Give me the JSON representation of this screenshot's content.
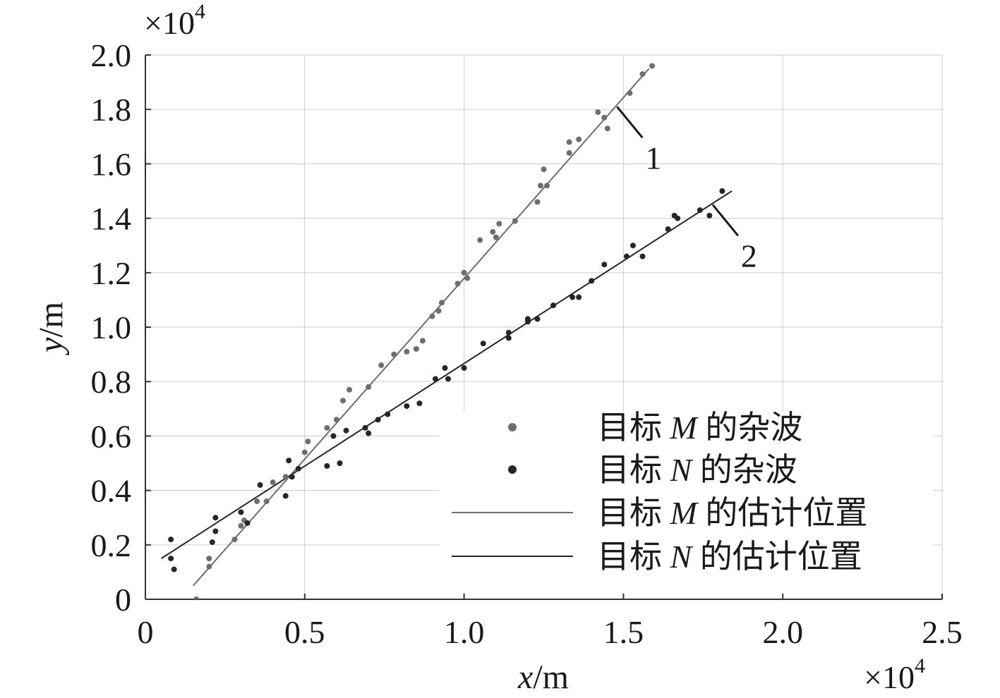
{
  "chart_data": {
    "type": "scatter",
    "xlabel": {
      "var": "x",
      "unit": "/m"
    },
    "ylabel": {
      "var": "y",
      "unit": "/m"
    },
    "x_multiplier": {
      "base": "×10",
      "exp": "4"
    },
    "y_multiplier": {
      "base": "×10",
      "exp": "4"
    },
    "xlim": [
      0,
      2.5
    ],
    "ylim": [
      0,
      2.0
    ],
    "x_ticks": [
      {
        "value": 0,
        "label": "0"
      },
      {
        "value": 0.5,
        "label": "0.5"
      },
      {
        "value": 1.0,
        "label": "1.0"
      },
      {
        "value": 1.5,
        "label": "1.5"
      },
      {
        "value": 2.0,
        "label": "2.0"
      },
      {
        "value": 2.5,
        "label": "2.5"
      }
    ],
    "y_ticks": [
      {
        "value": 0,
        "label": "0"
      },
      {
        "value": 0.2,
        "label": "0.2"
      },
      {
        "value": 0.4,
        "label": "0.4"
      },
      {
        "value": 0.6,
        "label": "0.6"
      },
      {
        "value": 0.8,
        "label": "0.8"
      },
      {
        "value": 1.0,
        "label": "1.0"
      },
      {
        "value": 1.2,
        "label": "1.2"
      },
      {
        "value": 1.4,
        "label": "1.4"
      },
      {
        "value": 1.6,
        "label": "1.6"
      },
      {
        "value": 1.8,
        "label": "1.8"
      },
      {
        "value": 2.0,
        "label": "2.0"
      }
    ],
    "grid": true,
    "legend_position": "bottom-right",
    "series": [
      {
        "name_prefix": "目标 ",
        "name_var": "M",
        "name_suffix": " 的杂波",
        "kind": "points",
        "color": "#6e6e6e",
        "points": [
          [
            0.16,
            0.0
          ],
          [
            0.2,
            0.15
          ],
          [
            0.2,
            0.12
          ],
          [
            0.28,
            0.22
          ],
          [
            0.3,
            0.27
          ],
          [
            0.31,
            0.29
          ],
          [
            0.35,
            0.36
          ],
          [
            0.38,
            0.36
          ],
          [
            0.4,
            0.43
          ],
          [
            0.44,
            0.45
          ],
          [
            0.5,
            0.54
          ],
          [
            0.51,
            0.58
          ],
          [
            0.57,
            0.63
          ],
          [
            0.6,
            0.66
          ],
          [
            0.62,
            0.73
          ],
          [
            0.64,
            0.77
          ],
          [
            0.7,
            0.78
          ],
          [
            0.74,
            0.86
          ],
          [
            0.78,
            0.9
          ],
          [
            0.82,
            0.91
          ],
          [
            0.85,
            0.92
          ],
          [
            0.87,
            0.95
          ],
          [
            0.9,
            1.04
          ],
          [
            0.92,
            1.06
          ],
          [
            0.93,
            1.09
          ],
          [
            0.98,
            1.16
          ],
          [
            1.0,
            1.2
          ],
          [
            1.01,
            1.18
          ],
          [
            1.05,
            1.32
          ],
          [
            1.09,
            1.35
          ],
          [
            1.1,
            1.33
          ],
          [
            1.11,
            1.38
          ],
          [
            1.16,
            1.39
          ],
          [
            1.23,
            1.46
          ],
          [
            1.24,
            1.52
          ],
          [
            1.25,
            1.58
          ],
          [
            1.26,
            1.52
          ],
          [
            1.33,
            1.64
          ],
          [
            1.33,
            1.68
          ],
          [
            1.36,
            1.69
          ],
          [
            1.42,
            1.79
          ],
          [
            1.44,
            1.77
          ],
          [
            1.45,
            1.73
          ],
          [
            1.52,
            1.86
          ],
          [
            1.56,
            1.93
          ],
          [
            1.59,
            1.96
          ]
        ]
      },
      {
        "name_prefix": "目标 ",
        "name_var": "N",
        "name_suffix": " 的杂波",
        "kind": "points",
        "color": "#262626",
        "points": [
          [
            0.08,
            0.22
          ],
          [
            0.08,
            0.15
          ],
          [
            0.09,
            0.11
          ],
          [
            0.21,
            0.21
          ],
          [
            0.22,
            0.25
          ],
          [
            0.22,
            0.3
          ],
          [
            0.3,
            0.32
          ],
          [
            0.32,
            0.28
          ],
          [
            0.36,
            0.42
          ],
          [
            0.44,
            0.38
          ],
          [
            0.45,
            0.51
          ],
          [
            0.46,
            0.45
          ],
          [
            0.48,
            0.48
          ],
          [
            0.57,
            0.49
          ],
          [
            0.59,
            0.6
          ],
          [
            0.61,
            0.5
          ],
          [
            0.63,
            0.62
          ],
          [
            0.69,
            0.63
          ],
          [
            0.7,
            0.61
          ],
          [
            0.73,
            0.66
          ],
          [
            0.76,
            0.68
          ],
          [
            0.82,
            0.71
          ],
          [
            0.86,
            0.72
          ],
          [
            0.91,
            0.81
          ],
          [
            0.94,
            0.85
          ],
          [
            0.95,
            0.81
          ],
          [
            1.0,
            0.85
          ],
          [
            1.06,
            0.94
          ],
          [
            1.14,
            0.98
          ],
          [
            1.14,
            0.96
          ],
          [
            1.2,
            1.02
          ],
          [
            1.2,
            1.03
          ],
          [
            1.23,
            1.03
          ],
          [
            1.28,
            1.08
          ],
          [
            1.34,
            1.11
          ],
          [
            1.36,
            1.11
          ],
          [
            1.4,
            1.17
          ],
          [
            1.44,
            1.23
          ],
          [
            1.51,
            1.26
          ],
          [
            1.53,
            1.3
          ],
          [
            1.56,
            1.26
          ],
          [
            1.64,
            1.36
          ],
          [
            1.66,
            1.41
          ],
          [
            1.67,
            1.4
          ],
          [
            1.74,
            1.43
          ],
          [
            1.77,
            1.41
          ],
          [
            1.81,
            1.5
          ]
        ]
      },
      {
        "name_prefix": "目标 ",
        "name_var": "M",
        "name_suffix": " 的估计位置",
        "kind": "line",
        "color": "#6e6e6e",
        "points": [
          [
            0.15,
            0.05
          ],
          [
            1.58,
            1.95
          ]
        ]
      },
      {
        "name_prefix": "目标 ",
        "name_var": "N",
        "name_suffix": " 的估计位置",
        "kind": "line",
        "color": "#262626",
        "points": [
          [
            0.05,
            0.15
          ],
          [
            1.84,
            1.5
          ]
        ]
      }
    ],
    "annotations": [
      {
        "text": "1",
        "target": "series-3",
        "anchor": [
          1.48,
          1.81
        ]
      },
      {
        "text": "2",
        "target": "series-4",
        "anchor": [
          1.78,
          1.45
        ]
      }
    ]
  }
}
